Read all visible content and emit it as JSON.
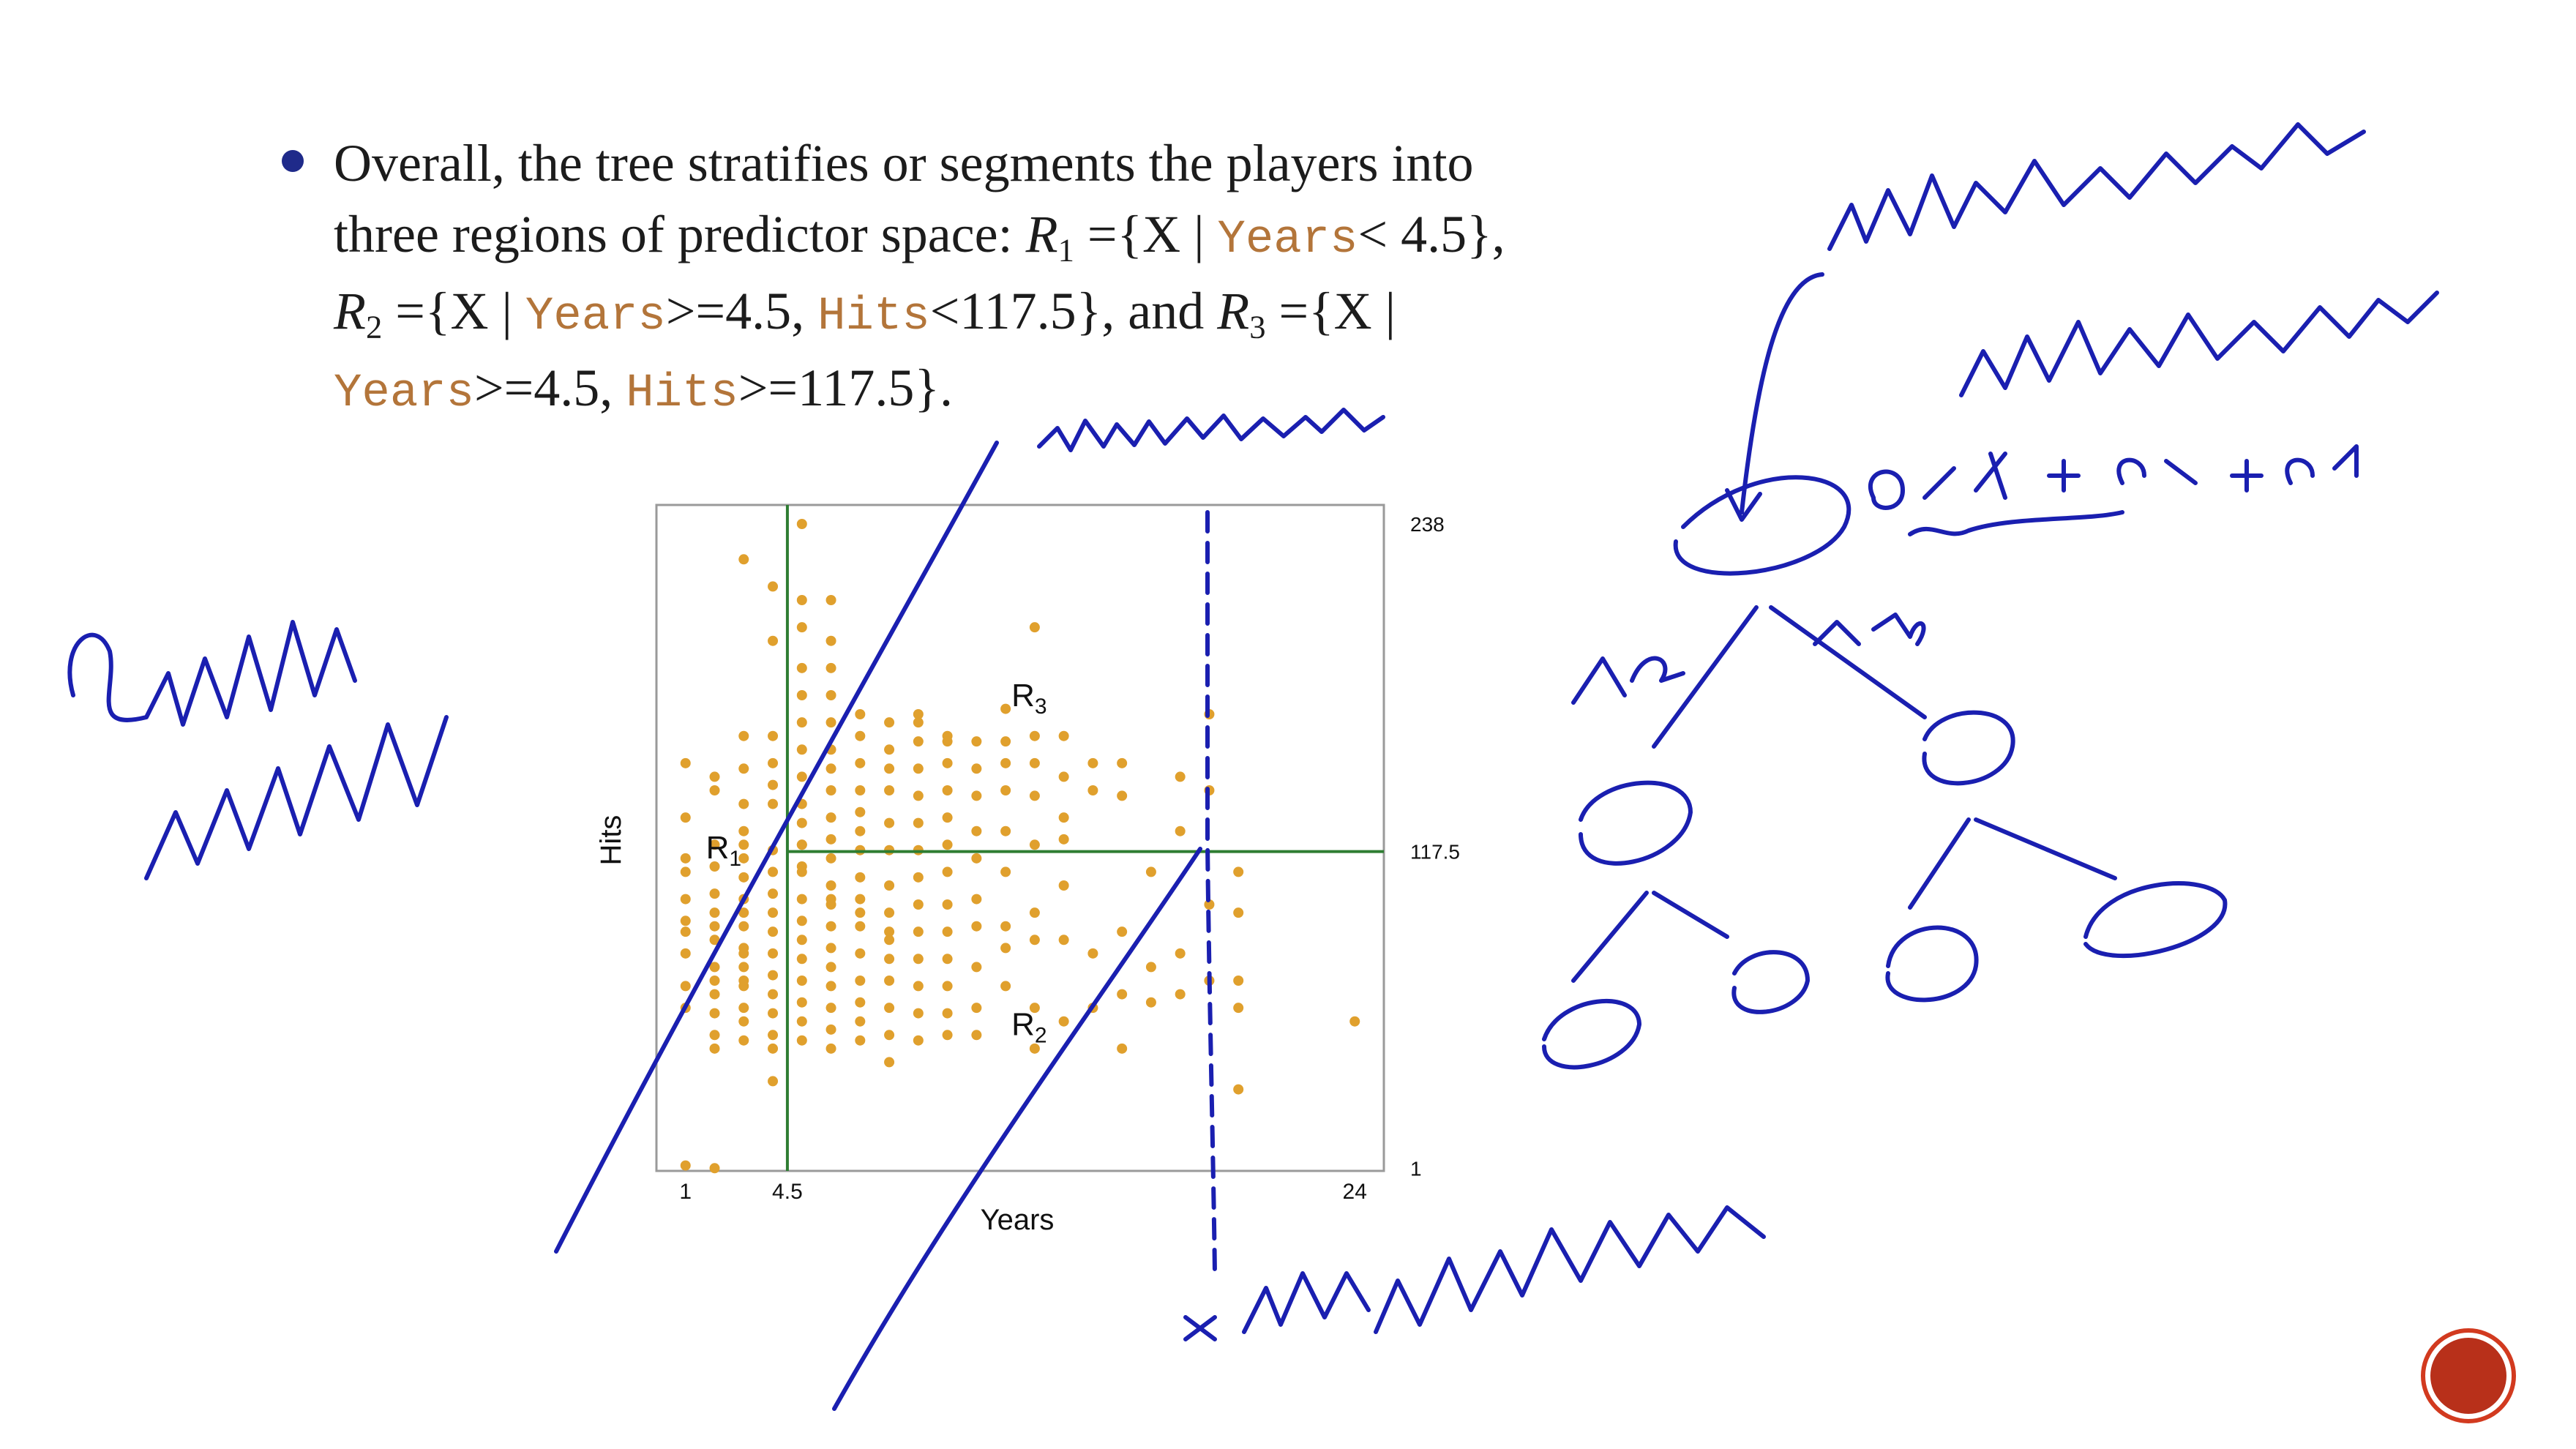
{
  "slide": {
    "bullet": {
      "lines": [
        [
          "Overall, the tree stratifies or segments the players into"
        ],
        [
          "three regions of predictor space: ",
          "R",
          "1",
          " ={X | ",
          "Years",
          "< 4.5},"
        ],
        [
          "R",
          "2",
          " ={X | ",
          "Years",
          ">=4.5, ",
          "Hits",
          "<117.5}, and ",
          "R",
          "3",
          " ={X |"
        ],
        [
          "Years",
          ">=4.5, ",
          "Hits",
          ">=117.5}."
        ]
      ]
    }
  },
  "chart_data": {
    "type": "scatter",
    "xlabel": "Years",
    "ylabel": "Hits",
    "xlim": [
      0,
      25
    ],
    "ylim": [
      0,
      245
    ],
    "x_ticks": [
      "1",
      "4.5",
      "24"
    ],
    "y_ticks": [
      "1",
      "117.5",
      "238"
    ],
    "splits": {
      "x_split": 4.5,
      "y_split": 117.5
    },
    "regions": [
      {
        "label": "R",
        "sub": "1",
        "x": 1.7,
        "y": 115
      },
      {
        "label": "R",
        "sub": "2",
        "x": 12.2,
        "y": 50
      },
      {
        "label": "R",
        "sub": "3",
        "x": 12.2,
        "y": 171
      }
    ],
    "color": "#e0a02d",
    "points": [
      [
        1,
        2
      ],
      [
        2,
        1
      ],
      [
        1,
        115
      ],
      [
        1,
        110
      ],
      [
        1,
        100
      ],
      [
        1,
        92
      ],
      [
        1,
        88
      ],
      [
        1,
        80
      ],
      [
        1,
        68
      ],
      [
        1,
        60
      ],
      [
        1,
        130
      ],
      [
        1,
        150
      ],
      [
        2,
        120
      ],
      [
        2,
        112
      ],
      [
        2,
        102
      ],
      [
        2,
        95
      ],
      [
        2,
        90
      ],
      [
        2,
        85
      ],
      [
        2,
        75
      ],
      [
        2,
        70
      ],
      [
        2,
        65
      ],
      [
        2,
        58
      ],
      [
        2,
        50
      ],
      [
        2,
        45
      ],
      [
        2,
        145
      ],
      [
        2,
        140
      ],
      [
        3,
        125
      ],
      [
        3,
        120
      ],
      [
        3,
        115
      ],
      [
        3,
        108
      ],
      [
        3,
        100
      ],
      [
        3,
        95
      ],
      [
        3,
        90
      ],
      [
        3,
        82
      ],
      [
        3,
        75
      ],
      [
        3,
        68
      ],
      [
        3,
        60
      ],
      [
        3,
        55
      ],
      [
        3,
        48
      ],
      [
        3,
        135
      ],
      [
        3,
        148
      ],
      [
        3,
        160
      ],
      [
        3,
        225
      ],
      [
        3,
        80
      ],
      [
        3,
        70
      ],
      [
        4,
        118
      ],
      [
        4,
        110
      ],
      [
        4,
        102
      ],
      [
        4,
        95
      ],
      [
        4,
        88
      ],
      [
        4,
        80
      ],
      [
        4,
        72
      ],
      [
        4,
        65
      ],
      [
        4,
        58
      ],
      [
        4,
        50
      ],
      [
        4,
        45
      ],
      [
        4,
        135
      ],
      [
        4,
        142
      ],
      [
        4,
        150
      ],
      [
        4,
        160
      ],
      [
        4,
        195
      ],
      [
        4,
        215
      ],
      [
        4,
        33
      ],
      [
        5,
        238
      ],
      [
        5,
        210
      ],
      [
        5,
        200
      ],
      [
        5,
        185
      ],
      [
        5,
        175
      ],
      [
        5,
        165
      ],
      [
        5,
        155
      ],
      [
        5,
        145
      ],
      [
        5,
        135
      ],
      [
        5,
        128
      ],
      [
        5,
        120
      ],
      [
        5,
        110
      ],
      [
        5,
        100
      ],
      [
        5,
        92
      ],
      [
        5,
        85
      ],
      [
        5,
        78
      ],
      [
        5,
        70
      ],
      [
        5,
        62
      ],
      [
        5,
        55
      ],
      [
        5,
        48
      ],
      [
        5,
        120
      ],
      [
        5,
        112
      ],
      [
        6,
        210
      ],
      [
        6,
        195
      ],
      [
        6,
        185
      ],
      [
        6,
        175
      ],
      [
        6,
        165
      ],
      [
        6,
        155
      ],
      [
        6,
        148
      ],
      [
        6,
        140
      ],
      [
        6,
        130
      ],
      [
        6,
        122
      ],
      [
        6,
        115
      ],
      [
        6,
        105
      ],
      [
        6,
        98
      ],
      [
        6,
        90
      ],
      [
        6,
        82
      ],
      [
        6,
        75
      ],
      [
        6,
        68
      ],
      [
        6,
        60
      ],
      [
        6,
        52
      ],
      [
        6,
        45
      ],
      [
        6,
        100
      ],
      [
        7,
        160
      ],
      [
        7,
        150
      ],
      [
        7,
        140
      ],
      [
        7,
        132
      ],
      [
        7,
        125
      ],
      [
        7,
        118
      ],
      [
        7,
        108
      ],
      [
        7,
        100
      ],
      [
        7,
        90
      ],
      [
        7,
        80
      ],
      [
        7,
        70
      ],
      [
        7,
        62
      ],
      [
        7,
        55
      ],
      [
        7,
        48
      ],
      [
        7,
        168
      ],
      [
        7,
        95
      ],
      [
        8,
        165
      ],
      [
        8,
        155
      ],
      [
        8,
        148
      ],
      [
        8,
        140
      ],
      [
        8,
        128
      ],
      [
        8,
        118
      ],
      [
        8,
        105
      ],
      [
        8,
        95
      ],
      [
        8,
        88
      ],
      [
        8,
        78
      ],
      [
        8,
        70
      ],
      [
        8,
        60
      ],
      [
        8,
        50
      ],
      [
        8,
        40
      ],
      [
        8,
        85
      ],
      [
        9,
        168
      ],
      [
        9,
        158
      ],
      [
        9,
        148
      ],
      [
        9,
        138
      ],
      [
        9,
        128
      ],
      [
        9,
        118
      ],
      [
        9,
        108
      ],
      [
        9,
        98
      ],
      [
        9,
        88
      ],
      [
        9,
        78
      ],
      [
        9,
        68
      ],
      [
        9,
        58
      ],
      [
        9,
        48
      ],
      [
        9,
        165
      ],
      [
        10,
        160
      ],
      [
        10,
        150
      ],
      [
        10,
        140
      ],
      [
        10,
        130
      ],
      [
        10,
        120
      ],
      [
        10,
        110
      ],
      [
        10,
        98
      ],
      [
        10,
        88
      ],
      [
        10,
        78
      ],
      [
        10,
        68
      ],
      [
        10,
        58
      ],
      [
        10,
        50
      ],
      [
        10,
        158
      ],
      [
        11,
        158
      ],
      [
        11,
        148
      ],
      [
        11,
        138
      ],
      [
        11,
        125
      ],
      [
        11,
        115
      ],
      [
        11,
        100
      ],
      [
        11,
        90
      ],
      [
        11,
        75
      ],
      [
        11,
        60
      ],
      [
        11,
        50
      ],
      [
        12,
        170
      ],
      [
        12,
        158
      ],
      [
        12,
        150
      ],
      [
        12,
        140
      ],
      [
        12,
        125
      ],
      [
        12,
        110
      ],
      [
        12,
        90
      ],
      [
        12,
        82
      ],
      [
        12,
        68
      ],
      [
        13,
        200
      ],
      [
        13,
        160
      ],
      [
        13,
        150
      ],
      [
        13,
        138
      ],
      [
        13,
        120
      ],
      [
        13,
        95
      ],
      [
        13,
        85
      ],
      [
        13,
        60
      ],
      [
        13,
        45
      ],
      [
        14,
        160
      ],
      [
        14,
        145
      ],
      [
        14,
        130
      ],
      [
        14,
        122
      ],
      [
        14,
        105
      ],
      [
        14,
        85
      ],
      [
        14,
        55
      ],
      [
        15,
        150
      ],
      [
        15,
        140
      ],
      [
        15,
        80
      ],
      [
        15,
        60
      ],
      [
        16,
        150
      ],
      [
        16,
        138
      ],
      [
        16,
        88
      ],
      [
        16,
        65
      ],
      [
        16,
        45
      ],
      [
        17,
        110
      ],
      [
        17,
        75
      ],
      [
        17,
        62
      ],
      [
        18,
        145
      ],
      [
        18,
        125
      ],
      [
        18,
        80
      ],
      [
        18,
        65
      ],
      [
        19,
        168
      ],
      [
        19,
        140
      ],
      [
        19,
        98
      ],
      [
        19,
        70
      ],
      [
        20,
        110
      ],
      [
        20,
        95
      ],
      [
        20,
        70
      ],
      [
        20,
        60
      ],
      [
        20,
        30
      ],
      [
        24,
        55
      ]
    ]
  }
}
